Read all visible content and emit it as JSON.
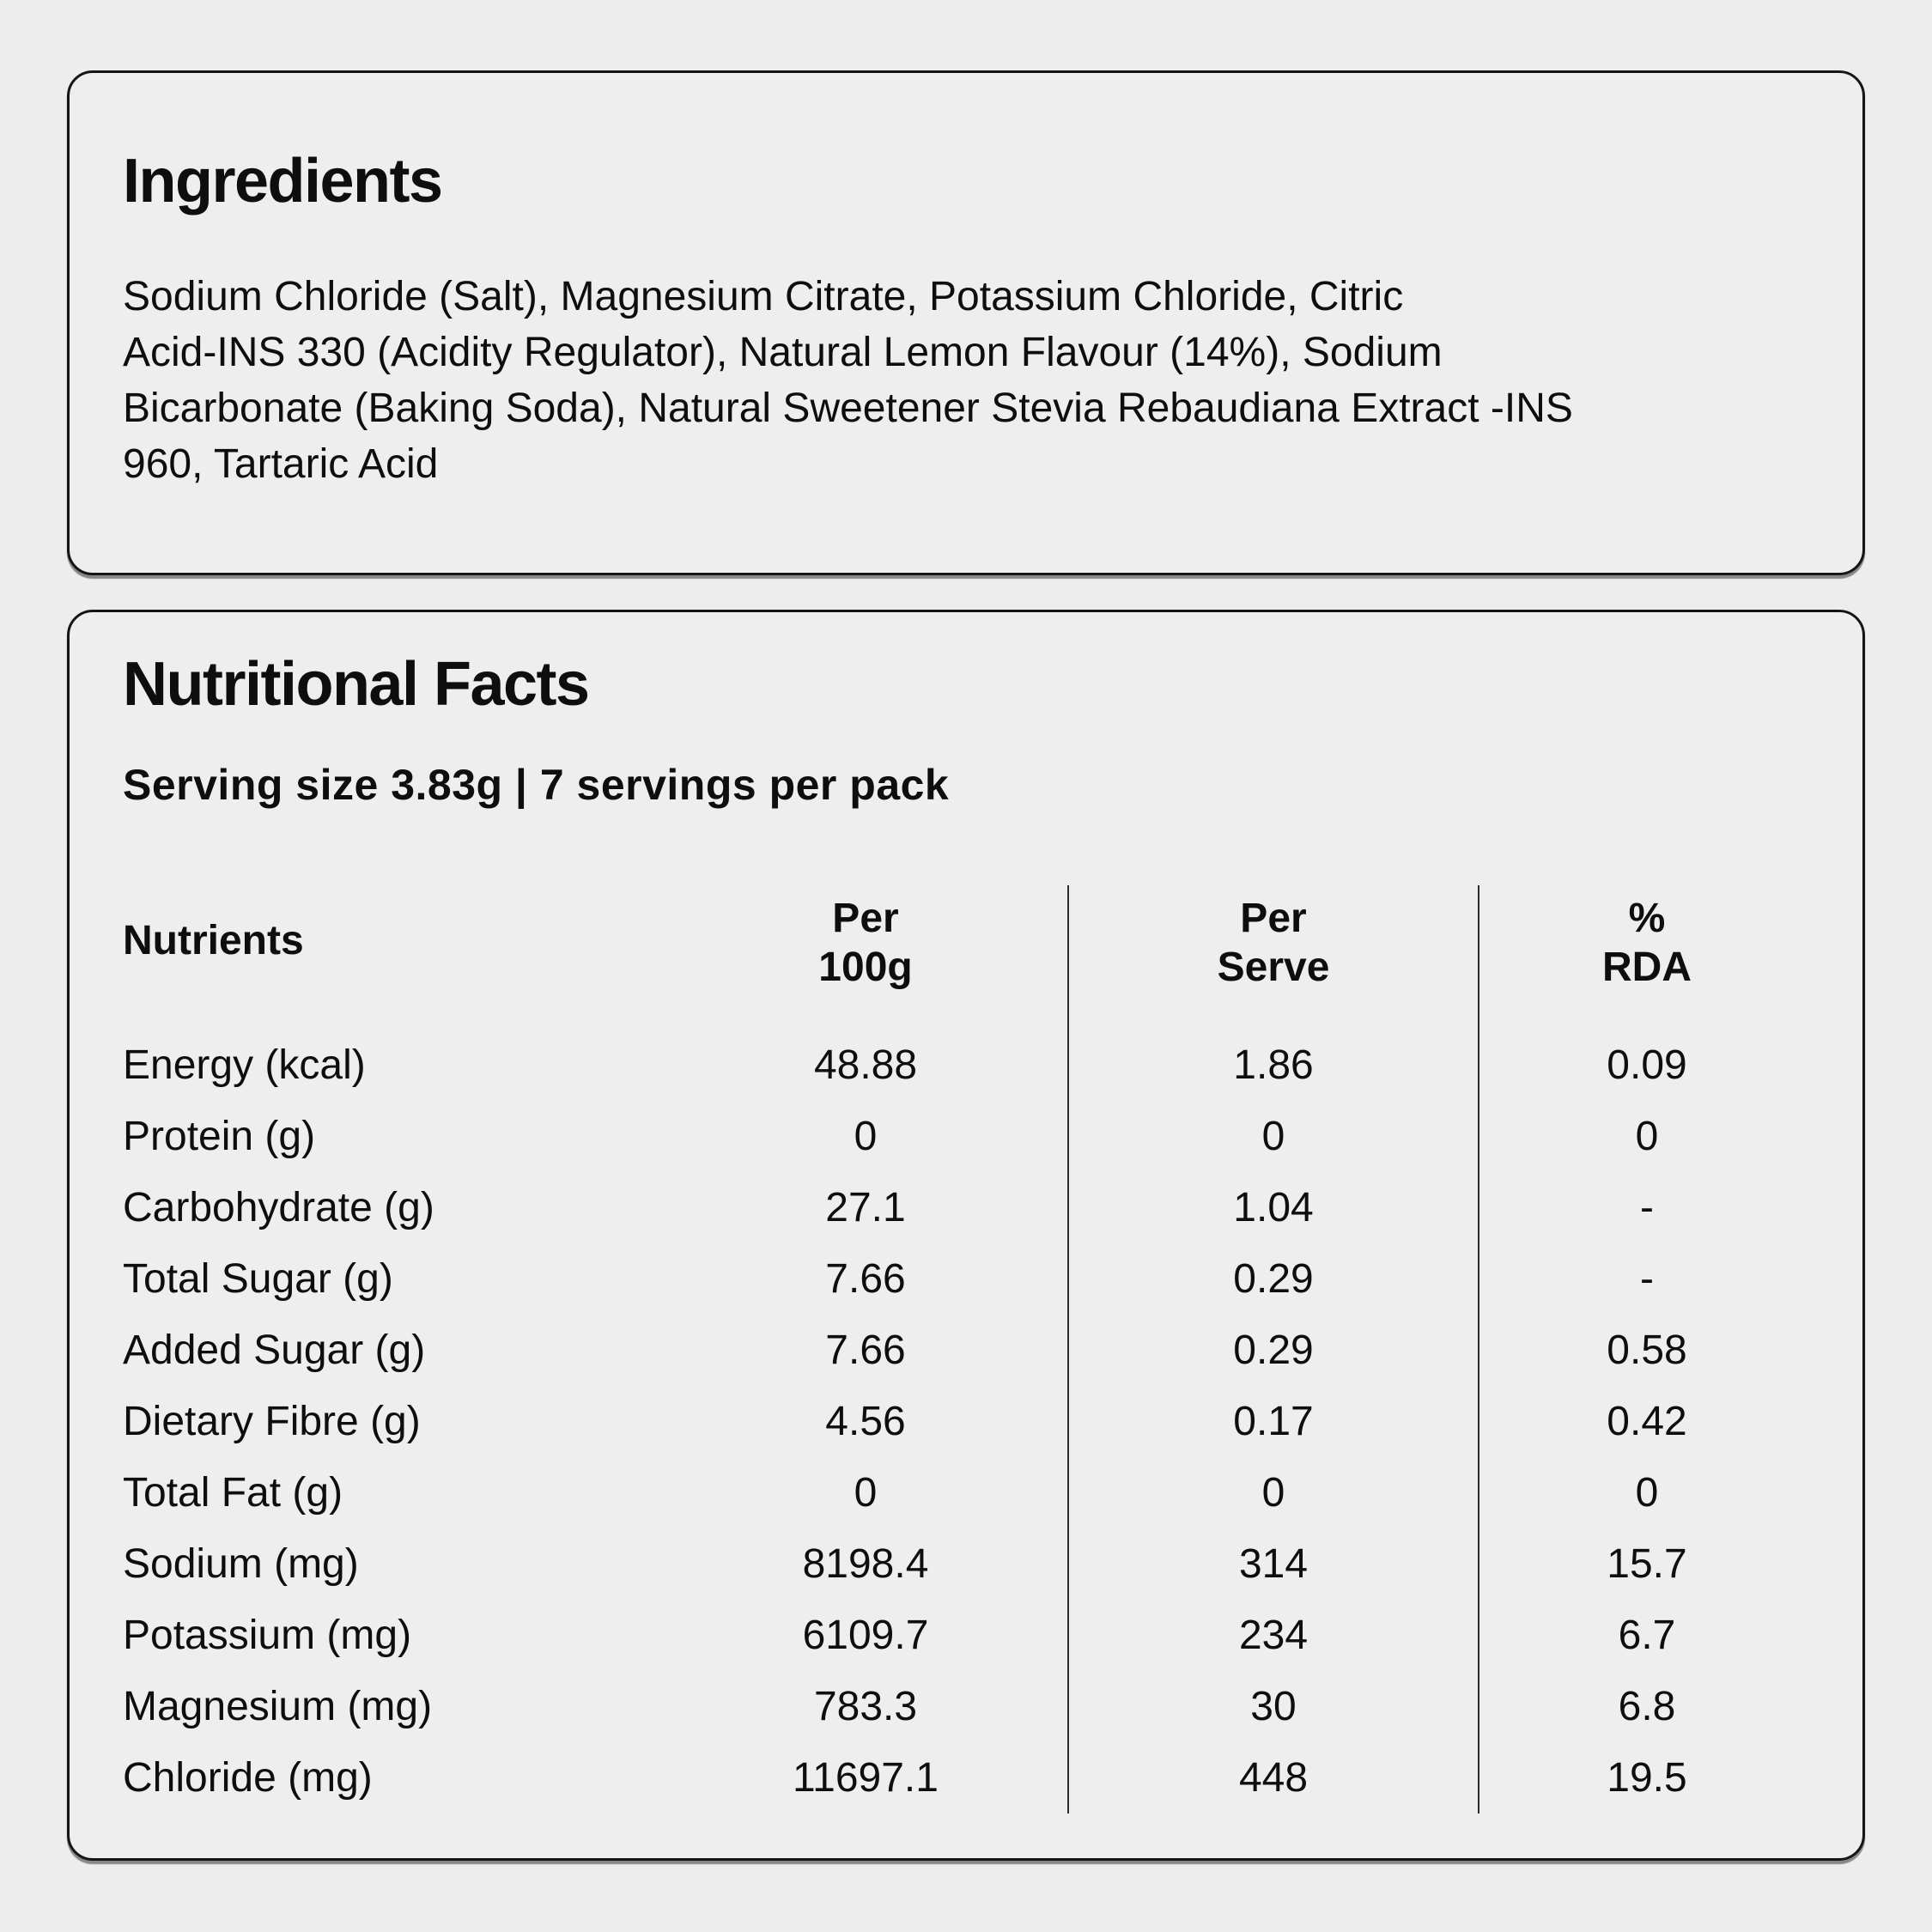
{
  "page": {
    "background_color": "#ededee",
    "text_color": "#0e0e0f",
    "card_border_color": "#151515",
    "divider_color": "#2c2c2c"
  },
  "ingredients_card": {
    "title": "Ingredients",
    "full_text": "Sodium Chloride (Salt), Magnesium Citrate, Potassium Chloride, Citric Acid-INS 330 (Acidity Regulator), Natural Lemon Flavour (14%), Sodium Bicarbonate (Baking Soda), Natural Sweetener Stevia Rebaudiana Extract -INS 960, Tartaric Acid",
    "lines": [
      "Sodium Chloride (Salt), Magnesium Citrate, Potassium Chloride, Citric",
      "Acid-INS 330 (Acidity Regulator), Natural Lemon Flavour (14%), Sodium",
      "Bicarbonate (Baking Soda), Natural Sweetener Stevia Rebaudiana Extract -INS",
      "960, Tartaric Acid"
    ]
  },
  "nutrition_card": {
    "title": "Nutritional Facts",
    "serving_info": "Serving size 3.83g | 7 servings per pack",
    "table": {
      "headers": {
        "nutrients": "Nutrients",
        "per_100g_line1": "Per",
        "per_100g_line2": "100g",
        "per_serve_line1": "Per",
        "per_serve_line2": "Serve",
        "rda_line1": "%",
        "rda_line2": "RDA"
      },
      "rows": [
        {
          "label": "Energy (kcal)",
          "per_100g": "48.88",
          "per_serve": "1.86",
          "rda": "0.09"
        },
        {
          "label": "Protein (g)",
          "per_100g": "0",
          "per_serve": "0",
          "rda": "0"
        },
        {
          "label": "Carbohydrate (g)",
          "per_100g": "27.1",
          "per_serve": "1.04",
          "rda": "-"
        },
        {
          "label": "Total Sugar (g)",
          "per_100g": "7.66",
          "per_serve": "0.29",
          "rda": "-"
        },
        {
          "label": "Added Sugar (g)",
          "per_100g": "7.66",
          "per_serve": "0.29",
          "rda": "0.58"
        },
        {
          "label": "Dietary Fibre (g)",
          "per_100g": "4.56",
          "per_serve": "0.17",
          "rda": "0.42"
        },
        {
          "label": "Total Fat (g)",
          "per_100g": "0",
          "per_serve": "0",
          "rda": "0"
        },
        {
          "label": "Sodium (mg)",
          "per_100g": "8198.4",
          "per_serve": "314",
          "rda": "15.7"
        },
        {
          "label": "Potassium (mg)",
          "per_100g": "6109.7",
          "per_serve": "234",
          "rda": "6.7"
        },
        {
          "label": "Magnesium (mg)",
          "per_100g": "783.3",
          "per_serve": "30",
          "rda": "6.8"
        },
        {
          "label": "Chloride (mg)",
          "per_100g": "11697.1",
          "per_serve": "448",
          "rda": "19.5"
        }
      ]
    }
  }
}
